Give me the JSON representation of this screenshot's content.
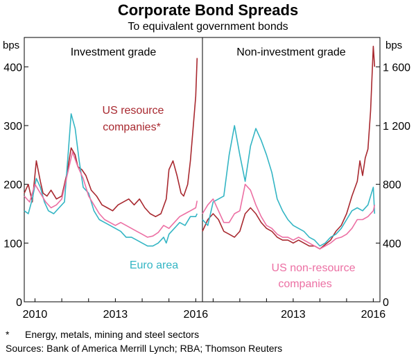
{
  "title": "Corporate Bond Spreads",
  "subtitle": "To equivalent government bonds",
  "footnote_marker": "*",
  "footnote": "Energy, metals, mining and steel sectors",
  "sources": "Sources:  Bank of America Merrill Lynch; RBA; Thomson Reuters",
  "chart_data": [
    {
      "type": "line",
      "panel_title": "Investment grade",
      "y_unit": "bps",
      "ylim": [
        0,
        450
      ],
      "yticks": [
        0,
        100,
        200,
        300,
        400
      ],
      "ytick_labels": [
        "0",
        "100",
        "200",
        "300",
        "400"
      ],
      "xlim": [
        2009.6,
        2016.25
      ],
      "xticks": [
        2010,
        2013,
        2016
      ],
      "xtick_labels": [
        "2010",
        "2013",
        "2016"
      ],
      "series": [
        {
          "name": "US resource companies*",
          "color": "#a8282f",
          "x": [
            2009.6,
            2009.75,
            2009.9,
            2010.05,
            2010.2,
            2010.3,
            2010.45,
            2010.6,
            2010.8,
            2011.0,
            2011.2,
            2011.35,
            2011.5,
            2011.6,
            2011.75,
            2011.9,
            2012.1,
            2012.3,
            2012.5,
            2012.7,
            2012.9,
            2013.1,
            2013.3,
            2013.5,
            2013.7,
            2013.9,
            2014.1,
            2014.3,
            2014.5,
            2014.7,
            2014.9,
            2015.0,
            2015.15,
            2015.3,
            2015.45,
            2015.55,
            2015.7,
            2015.8,
            2015.9,
            2016.0,
            2016.05
          ],
          "values": [
            185,
            200,
            170,
            240,
            205,
            185,
            180,
            190,
            175,
            180,
            220,
            262,
            250,
            230,
            225,
            215,
            190,
            180,
            165,
            160,
            155,
            165,
            170,
            175,
            165,
            175,
            160,
            150,
            145,
            150,
            175,
            225,
            240,
            215,
            185,
            180,
            200,
            240,
            295,
            350,
            415
          ]
        },
        {
          "name": "Euro area",
          "color": "#33b5c4",
          "x": [
            2009.6,
            2009.75,
            2009.9,
            2010.05,
            2010.2,
            2010.35,
            2010.5,
            2010.7,
            2010.9,
            2011.1,
            2011.25,
            2011.35,
            2011.5,
            2011.65,
            2011.8,
            2012.0,
            2012.2,
            2012.4,
            2012.6,
            2012.8,
            2013.0,
            2013.2,
            2013.4,
            2013.6,
            2013.8,
            2014.0,
            2014.2,
            2014.4,
            2014.6,
            2014.8,
            2014.9,
            2015.0,
            2015.2,
            2015.4,
            2015.6,
            2015.8,
            2016.0,
            2016.05
          ],
          "values": [
            155,
            150,
            175,
            210,
            195,
            170,
            155,
            150,
            160,
            170,
            260,
            320,
            295,
            240,
            195,
            185,
            155,
            140,
            135,
            130,
            125,
            120,
            110,
            110,
            105,
            100,
            95,
            95,
            100,
            110,
            100,
            115,
            125,
            135,
            130,
            145,
            145,
            150
          ]
        },
        {
          "name": "US non-resource companies",
          "color": "#ec6fa3",
          "x": [
            2009.6,
            2009.8,
            2010.0,
            2010.2,
            2010.4,
            2010.6,
            2010.8,
            2011.0,
            2011.2,
            2011.4,
            2011.6,
            2011.8,
            2012.0,
            2012.2,
            2012.4,
            2012.6,
            2012.8,
            2013.0,
            2013.2,
            2013.4,
            2013.6,
            2013.8,
            2014.0,
            2014.2,
            2014.4,
            2014.6,
            2014.8,
            2015.0,
            2015.2,
            2015.4,
            2015.6,
            2015.8,
            2016.0,
            2016.05
          ],
          "values": [
            180,
            170,
            200,
            185,
            170,
            160,
            165,
            175,
            215,
            255,
            230,
            210,
            180,
            165,
            150,
            140,
            135,
            130,
            135,
            130,
            125,
            120,
            115,
            110,
            112,
            118,
            130,
            125,
            135,
            145,
            150,
            155,
            160,
            172
          ]
        }
      ],
      "annotations": [
        {
          "text": "US resource",
          "series": "US resource companies*"
        },
        {
          "text": "companies*",
          "series": "US resource companies*"
        },
        {
          "text": "Euro area",
          "series": "Euro area"
        }
      ]
    },
    {
      "type": "line",
      "panel_title": "Non-investment grade",
      "y_unit": "bps",
      "ylim": [
        0,
        1800
      ],
      "yticks": [
        0,
        400,
        800,
        1200,
        1600
      ],
      "ytick_labels": [
        "0",
        "400",
        "800",
        "1 200",
        "1 600"
      ],
      "xlim": [
        2009.6,
        2016.25
      ],
      "xticks": [
        2013,
        2016
      ],
      "xtick_labels": [
        "2013",
        "2016"
      ],
      "series": [
        {
          "name": "US resource companies*",
          "color": "#a8282f",
          "x": [
            2009.6,
            2009.8,
            2010.0,
            2010.2,
            2010.4,
            2010.6,
            2010.8,
            2011.0,
            2011.2,
            2011.4,
            2011.6,
            2011.8,
            2012.0,
            2012.2,
            2012.4,
            2012.6,
            2012.8,
            2013.0,
            2013.2,
            2013.4,
            2013.6,
            2013.8,
            2014.0,
            2014.2,
            2014.4,
            2014.6,
            2014.8,
            2015.0,
            2015.2,
            2015.4,
            2015.5,
            2015.6,
            2015.7,
            2015.8,
            2015.9,
            2016.0,
            2016.05
          ],
          "values": [
            480,
            560,
            600,
            560,
            480,
            460,
            440,
            480,
            600,
            640,
            600,
            540,
            500,
            480,
            440,
            420,
            420,
            400,
            420,
            400,
            380,
            380,
            360,
            390,
            420,
            480,
            520,
            600,
            720,
            820,
            960,
            860,
            980,
            1040,
            1300,
            1740,
            1600
          ]
        },
        {
          "name": "Euro area",
          "color": "#33b5c4",
          "x": [
            2009.6,
            2009.8,
            2010.0,
            2010.2,
            2010.4,
            2010.6,
            2010.8,
            2011.0,
            2011.2,
            2011.4,
            2011.6,
            2011.8,
            2012.0,
            2012.2,
            2012.4,
            2012.6,
            2012.8,
            2013.0,
            2013.2,
            2013.4,
            2013.6,
            2013.8,
            2014.0,
            2014.2,
            2014.4,
            2014.6,
            2014.8,
            2015.0,
            2015.2,
            2015.4,
            2015.6,
            2015.8,
            2016.0,
            2016.05
          ],
          "values": [
            560,
            520,
            680,
            700,
            720,
            1000,
            1200,
            1000,
            820,
            1060,
            1180,
            1100,
            1000,
            880,
            700,
            620,
            560,
            520,
            500,
            480,
            440,
            420,
            380,
            400,
            440,
            460,
            500,
            560,
            620,
            640,
            620,
            660,
            780,
            600
          ]
        },
        {
          "name": "US non-resource companies",
          "color": "#ec6fa3",
          "x": [
            2009.6,
            2009.8,
            2010.0,
            2010.2,
            2010.4,
            2010.6,
            2010.8,
            2011.0,
            2011.2,
            2011.4,
            2011.6,
            2011.8,
            2012.0,
            2012.2,
            2012.4,
            2012.6,
            2012.8,
            2013.0,
            2013.2,
            2013.4,
            2013.6,
            2013.8,
            2014.0,
            2014.2,
            2014.4,
            2014.6,
            2014.8,
            2015.0,
            2015.2,
            2015.4,
            2015.6,
            2015.8,
            2016.0,
            2016.05
          ],
          "values": [
            600,
            660,
            700,
            620,
            540,
            540,
            600,
            620,
            800,
            760,
            660,
            580,
            520,
            500,
            460,
            440,
            440,
            420,
            440,
            420,
            400,
            380,
            360,
            380,
            400,
            430,
            440,
            460,
            500,
            560,
            560,
            580,
            620,
            660
          ]
        }
      ],
      "annotations": [
        {
          "text": "US non-resource",
          "series": "US non-resource companies"
        },
        {
          "text": "companies",
          "series": "US non-resource companies"
        }
      ]
    }
  ]
}
